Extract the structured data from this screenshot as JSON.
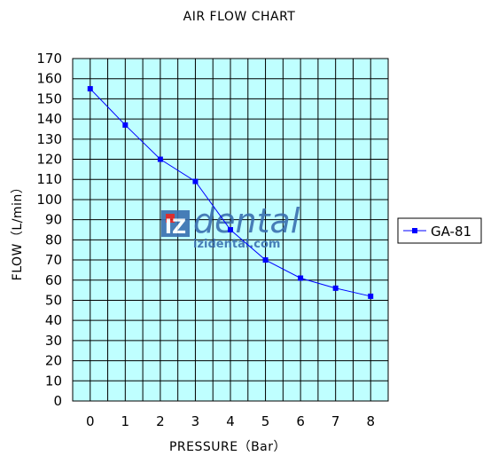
{
  "chart_data": {
    "type": "line",
    "title": "AIR FLOW CHART",
    "xlabel": "PRESSURE（Bar）",
    "ylabel": "FLOW（L/min）",
    "x": [
      0,
      1,
      2,
      3,
      4,
      5,
      6,
      7,
      8
    ],
    "xlim": [
      -0.5,
      8.5
    ],
    "ylim": [
      0,
      170
    ],
    "x_ticks": [
      0,
      1,
      2,
      3,
      4,
      5,
      6,
      7,
      8
    ],
    "y_ticks": [
      0,
      10,
      20,
      30,
      40,
      50,
      60,
      70,
      80,
      90,
      100,
      110,
      120,
      130,
      140,
      150,
      160,
      170
    ],
    "grid": true,
    "legend_position": "right",
    "plot_background": "#bfffff",
    "series": [
      {
        "name": "GA-81",
        "color": "#0000ff",
        "marker": "square",
        "values": [
          155,
          137,
          120,
          109,
          85,
          70,
          61,
          56,
          52
        ]
      }
    ]
  },
  "watermark": {
    "brand": "dental",
    "url": "izidental.com",
    "logo_letters": "IZ"
  }
}
